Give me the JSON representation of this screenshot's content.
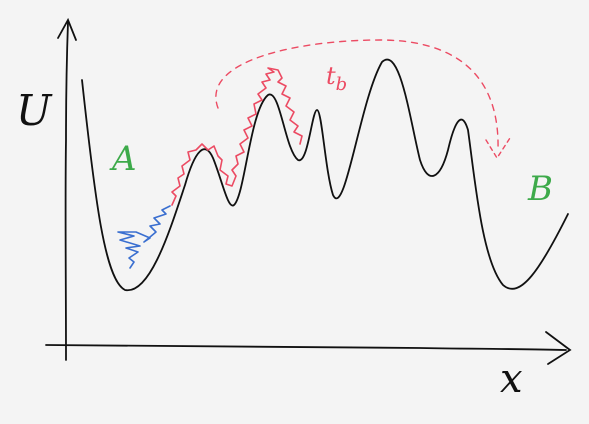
{
  "colors": {
    "background": "#f4f4f4",
    "ink": "#111111",
    "red_path": "#ec4b63",
    "blue_path": "#3a6fd0",
    "state_label": "#3daa4a"
  },
  "axes": {
    "y_label": "U",
    "x_label": "x"
  },
  "states": {
    "start_label": "A",
    "end_label": "B"
  },
  "transition": {
    "time_label": "t",
    "time_subscript": "b"
  }
}
